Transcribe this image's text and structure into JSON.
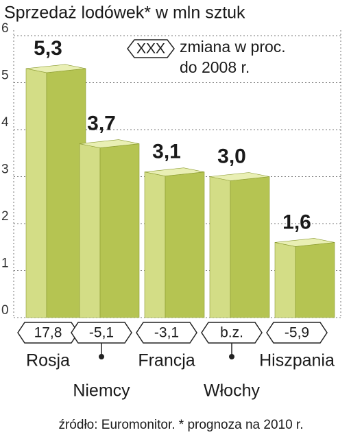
{
  "chart_data": {
    "type": "bar",
    "title": "Sprzedaż lodówek* w mln sztuk",
    "categories": [
      "Rosja",
      "Niemcy",
      "Francja",
      "Włochy",
      "Hiszpania"
    ],
    "values": [
      5.3,
      3.7,
      3.1,
      3.0,
      1.6
    ],
    "value_labels": [
      "5,3",
      "3,7",
      "3,1",
      "3,0",
      "1,6"
    ],
    "change_labels": [
      "17,8",
      "-5,1",
      "-3,1",
      "b.z.",
      "-5,9"
    ],
    "legend": {
      "symbol": "XXX",
      "text": [
        "zmiana w proc.",
        "do 2008 r."
      ]
    },
    "source": "źródło: Euromonitor. * prognoza na 2010 r.",
    "colors": {
      "front": "#d3dd86",
      "side": "#b5c452",
      "top": "#e9efb4"
    },
    "ylim": [
      0,
      6
    ],
    "yticks": [
      0,
      1,
      2,
      3,
      4,
      5,
      6
    ],
    "grid": true
  }
}
